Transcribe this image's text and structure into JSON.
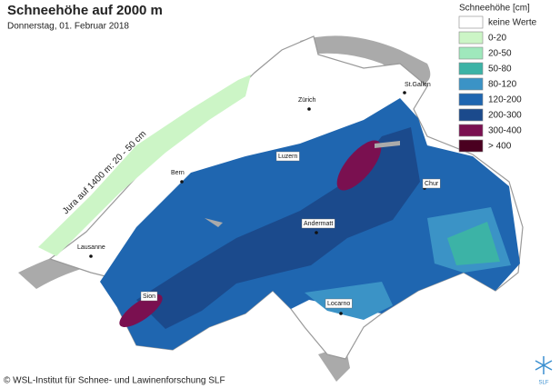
{
  "title": "Schneehöhe auf 2000 m",
  "subtitle": "Donnerstag, 01. Februar 2018",
  "legend": {
    "title": "Schneehöhe [cm]",
    "items": [
      {
        "label": "keine Werte",
        "color": "#ffffff"
      },
      {
        "label": "0-20",
        "color": "#ccf5c6"
      },
      {
        "label": "20-50",
        "color": "#9fe8bc"
      },
      {
        "label": "50-80",
        "color": "#3cb3a6"
      },
      {
        "label": "80-120",
        "color": "#3b93c6"
      },
      {
        "label": "120-200",
        "color": "#1f66b0"
      },
      {
        "label": "200-300",
        "color": "#1b4a8c"
      },
      {
        "label": "300-400",
        "color": "#7a1050"
      },
      {
        "label": "> 400",
        "color": "#4a0020"
      }
    ]
  },
  "cities": [
    {
      "name": "Zürich"
    },
    {
      "name": "St.Gallen"
    },
    {
      "name": "Luzern"
    },
    {
      "name": "Bern"
    },
    {
      "name": "Chur"
    },
    {
      "name": "Andermatt"
    },
    {
      "name": "Lausanne"
    },
    {
      "name": "Sion"
    },
    {
      "name": "Locarno"
    }
  ],
  "annotation": "Jura auf 1400 m: 20 - 50 cm",
  "copyright": "© WSL-Institut für Schnee- und Lawinenforschung SLF",
  "logo": "SLF"
}
